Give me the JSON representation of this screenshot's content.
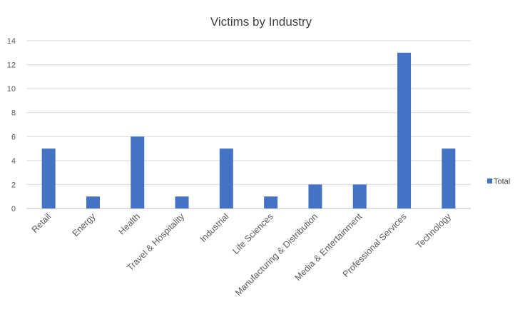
{
  "chart_data": {
    "type": "bar",
    "title": "Victims by Industry",
    "xlabel": "",
    "ylabel": "",
    "categories": [
      "Retail",
      "Energy",
      "Health",
      "Travel & Hospitality",
      "Industrial",
      "Life Sciences",
      "Manufacturing & Distribution",
      "Media & Entertainment",
      "Professional Services",
      "Technology"
    ],
    "series": [
      {
        "name": "Total",
        "values": [
          5,
          1,
          6,
          1,
          5,
          1,
          2,
          2,
          13,
          5
        ],
        "color": "#4472c4"
      }
    ],
    "ylim": [
      0,
      14
    ],
    "yticks": [
      0,
      2,
      4,
      6,
      8,
      10,
      12,
      14
    ],
    "grid": true,
    "legend_position": "right"
  }
}
